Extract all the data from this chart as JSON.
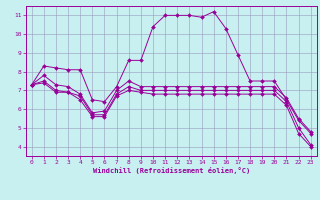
{
  "xlabel": "Windchill (Refroidissement éolien,°C)",
  "bg_color": "#c8f0f0",
  "line_color": "#990099",
  "grid_color": "#9999bb",
  "lines": [
    {
      "x": [
        0,
        1,
        2,
        3,
        4,
        5,
        6,
        7,
        8,
        9,
        10,
        11,
        12,
        13,
        14,
        15,
        16,
        17,
        18,
        19,
        20,
        21,
        22,
        23
      ],
      "y": [
        7.3,
        8.3,
        8.2,
        8.1,
        8.1,
        6.5,
        6.4,
        7.2,
        8.6,
        8.6,
        10.4,
        11.0,
        11.0,
        11.0,
        10.9,
        11.2,
        10.3,
        8.9,
        7.5,
        7.5,
        7.5,
        6.5,
        5.4,
        4.7
      ]
    },
    {
      "x": [
        0,
        1,
        2,
        3,
        4,
        5,
        6,
        7,
        8,
        9,
        10,
        11,
        12,
        13,
        14,
        15,
        16,
        17,
        18,
        19,
        20,
        21,
        22,
        23
      ],
      "y": [
        7.3,
        7.8,
        7.3,
        7.2,
        6.8,
        5.8,
        5.9,
        7.0,
        7.5,
        7.2,
        7.2,
        7.2,
        7.2,
        7.2,
        7.2,
        7.2,
        7.2,
        7.2,
        7.2,
        7.2,
        7.2,
        6.6,
        5.5,
        4.8
      ]
    },
    {
      "x": [
        0,
        1,
        2,
        3,
        4,
        5,
        6,
        7,
        8,
        9,
        10,
        11,
        12,
        13,
        14,
        15,
        16,
        17,
        18,
        19,
        20,
        21,
        22,
        23
      ],
      "y": [
        7.3,
        7.5,
        7.0,
        6.9,
        6.7,
        5.7,
        5.7,
        6.8,
        7.2,
        7.0,
        7.0,
        7.0,
        7.0,
        7.0,
        7.0,
        7.0,
        7.0,
        7.0,
        7.0,
        7.0,
        7.0,
        6.4,
        5.0,
        4.1
      ]
    },
    {
      "x": [
        0,
        1,
        2,
        3,
        4,
        5,
        6,
        7,
        8,
        9,
        10,
        11,
        12,
        13,
        14,
        15,
        16,
        17,
        18,
        19,
        20,
        21,
        22,
        23
      ],
      "y": [
        7.3,
        7.4,
        6.9,
        6.9,
        6.5,
        5.6,
        5.6,
        6.7,
        7.0,
        6.9,
        6.8,
        6.8,
        6.8,
        6.8,
        6.8,
        6.8,
        6.8,
        6.8,
        6.8,
        6.8,
        6.8,
        6.2,
        4.7,
        4.0
      ]
    }
  ],
  "xlim": [
    -0.5,
    23.5
  ],
  "ylim": [
    3.5,
    11.5
  ],
  "yticks": [
    4,
    5,
    6,
    7,
    8,
    9,
    10,
    11
  ],
  "xticks": [
    0,
    1,
    2,
    3,
    4,
    5,
    6,
    7,
    8,
    9,
    10,
    11,
    12,
    13,
    14,
    15,
    16,
    17,
    18,
    19,
    20,
    21,
    22,
    23
  ],
  "figsize": [
    3.2,
    2.0
  ],
  "dpi": 100
}
